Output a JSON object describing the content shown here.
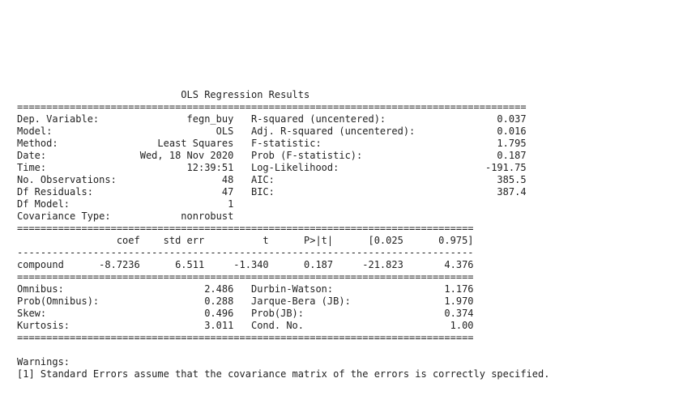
{
  "lines": [
    "                            OLS Regression Results                            ",
    "=======================================================================================",
    "Dep. Variable:               fegn_buy   R-squared (uncentered):                   0.037",
    "Model:                            OLS   Adj. R-squared (uncentered):              0.016",
    "Method:                 Least Squares   F-statistic:                              1.795",
    "Date:                Wed, 18 Nov 2020   Prob (F-statistic):                       0.187",
    "Time:                        12:39:51   Log-Likelihood:                         -191.75",
    "No. Observations:                  48   AIC:                                      385.5",
    "Df Residuals:                      47   BIC:                                      387.4",
    "Df Model:                           1                                                  ",
    "Covariance Type:            nonrobust                                                  ",
    "==============================================================================",
    "                 coef    std err          t      P>|t|      [0.025      0.975]",
    "------------------------------------------------------------------------------",
    "compound      -8.7236      6.511     -1.340      0.187     -21.823       4.376",
    "==============================================================================",
    "Omnibus:                        2.486   Durbin-Watson:                   1.176",
    "Prob(Omnibus):                  0.288   Jarque-Bera (JB):                1.970",
    "Skew:                           0.496   Prob(JB):                        0.374",
    "Kurtosis:                       3.011   Cond. No.                         1.00",
    "==============================================================================",
    "",
    "Warnings:",
    "[1] Standard Errors assume that the covariance matrix of the errors is correctly specified."
  ]
}
